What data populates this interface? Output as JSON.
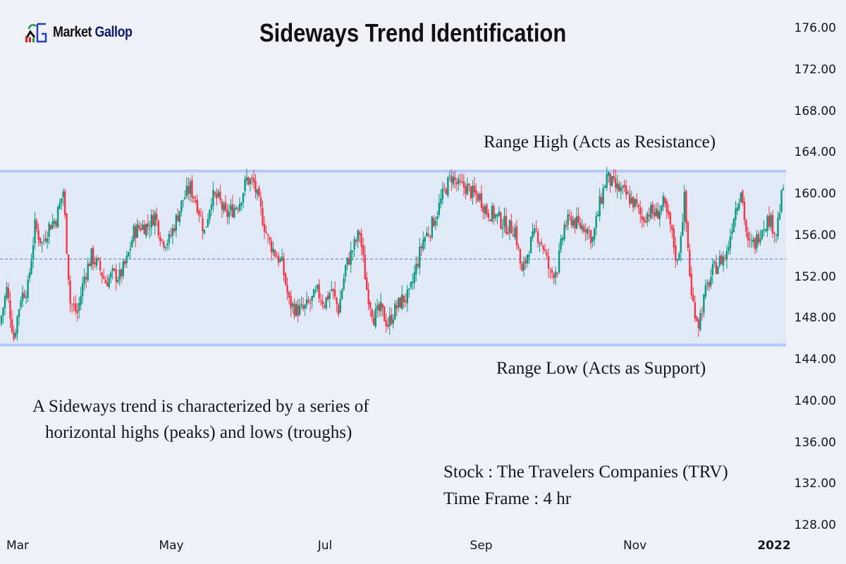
{
  "logo": {
    "text_1": "Market",
    "text_2": "Gallop"
  },
  "title": "Sideways Trend Identification",
  "annotations": {
    "range_high": "Range High (Acts as Resistance)",
    "range_low": "Range Low (Acts as Support)",
    "description_line1": "A Sideways trend is characterized by a series of",
    "description_line2": "horizontal highs (peaks) and lows (troughs)",
    "stock": "Stock : The Travelers Companies (TRV)",
    "timeframe": "Time Frame : 4 hr"
  },
  "chart_data": {
    "type": "candlestick",
    "title": "Sideways Trend Identification",
    "ylim": [
      128,
      176
    ],
    "y_ticks": [
      "128.00",
      "132.00",
      "136.00",
      "140.00",
      "144.00",
      "148.00",
      "152.00",
      "156.00",
      "160.00",
      "164.00",
      "168.00",
      "172.00",
      "176.00"
    ],
    "x_ticks": [
      {
        "label": "Mar",
        "date": "2021-03-01",
        "bold": false
      },
      {
        "label": "May",
        "date": "2021-05-01",
        "bold": false
      },
      {
        "label": "Jul",
        "date": "2021-07-01",
        "bold": false
      },
      {
        "label": "Sep",
        "date": "2021-09-01",
        "bold": false
      },
      {
        "label": "Nov",
        "date": "2021-11-01",
        "bold": false
      },
      {
        "label": "2022",
        "date": "2022-01-01",
        "bold": true
      }
    ],
    "x_range": [
      "2021-02-22",
      "2021-12-31"
    ],
    "approx_closes": [
      147.4,
      150.8,
      146.1,
      150.1,
      151.0,
      156.9,
      155.2,
      156.9,
      157.6,
      160.3,
      149.5,
      148.5,
      152.0,
      154.0,
      153.0,
      151.5,
      152.2,
      152.0,
      153.5,
      156.3,
      156.9,
      156.9,
      158.0,
      155.5,
      155.5,
      157.5,
      159.5,
      160.6,
      159.0,
      156.3,
      159.7,
      159.5,
      157.9,
      158.5,
      159.3,
      161.4,
      161.0,
      158.3,
      155.6,
      154.3,
      153.2,
      149.5,
      148.8,
      148.8,
      149.5,
      150.5,
      149.5,
      150.8,
      148.8,
      152.9,
      154.6,
      156.3,
      150.8,
      148.1,
      148.8,
      147.4,
      148.8,
      149.8,
      150.1,
      152.9,
      155.6,
      156.6,
      158.3,
      160.3,
      161.7,
      160.7,
      160.7,
      160.0,
      159.7,
      158.3,
      158.0,
      157.4,
      156.8,
      156.6,
      152.2,
      154.9,
      156.3,
      154.9,
      152.2,
      152.9,
      156.9,
      157.6,
      156.9,
      156.9,
      155.6,
      159.0,
      161.7,
      160.7,
      160.3,
      159.7,
      159.0,
      157.6,
      158.3,
      158.0,
      159.0,
      156.9,
      153.2,
      159.5,
      150.0,
      147.5,
      150.5,
      152.5,
      153.5,
      154.2,
      158.0,
      160.5,
      155.0,
      155.2,
      156.9,
      157.6,
      156.3,
      160.7
    ],
    "range_high": 162.2,
    "range_low": 145.4,
    "midline": 153.7,
    "colors": {
      "up": "#089981",
      "down": "#f23645",
      "range_band": "#e1e8f6",
      "range_line": "#b3c8f7",
      "midline": "#2962ff"
    },
    "grid": false
  }
}
